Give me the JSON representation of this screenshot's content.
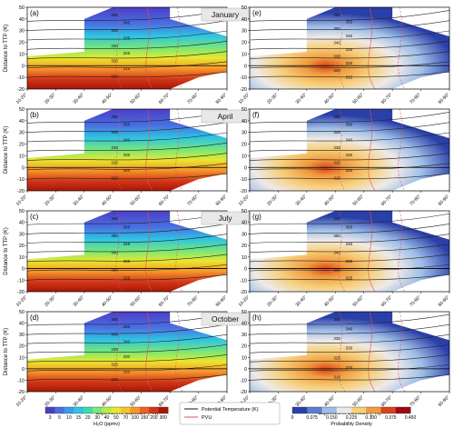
{
  "chart_data": [
    {
      "type": "heatmap",
      "panel_label": "(a)",
      "season": "January",
      "ylabel": "Distance to TTP (K)",
      "ylim": [
        -20,
        50
      ],
      "yticks": [
        -20,
        -10,
        0,
        10,
        20,
        30,
        40,
        50
      ],
      "xticks": [
        "10-20°",
        "20-30°",
        "30-40°",
        "40-50°",
        "50-60°",
        "60-70°",
        "70-80°",
        "80-90°"
      ],
      "contour_labels": [
        "355",
        "345",
        "340",
        "335",
        "330",
        "325",
        "320",
        "315",
        "310"
      ]
    },
    {
      "type": "heatmap",
      "panel_label": "(e)",
      "season": "",
      "ylim": [
        -20,
        50
      ],
      "yticks": [
        -20,
        -10,
        0,
        10,
        20,
        30,
        40,
        50
      ],
      "xticks": [
        "10-20°",
        "20-30°",
        "30-40°",
        "40-50°",
        "50-60°",
        "60-70°",
        "70-80°",
        "80-90°"
      ],
      "contour_labels": [
        "360",
        "355",
        "350",
        "345",
        "340",
        "335",
        "330",
        "325",
        "320",
        "315"
      ]
    },
    {
      "type": "heatmap",
      "panel_label": "(b)",
      "season": "April",
      "ylabel": "Distance to TTP (K)",
      "ylim": [
        -20,
        50
      ],
      "yticks": [
        -20,
        -10,
        0,
        10,
        20,
        30,
        40,
        50
      ],
      "xticks": [
        "10-20°",
        "20-30°",
        "30-40°",
        "40-50°",
        "50-60°",
        "60-70°",
        "70-80°",
        "80-90°"
      ],
      "contour_labels": [
        "355",
        "350",
        "345",
        "340",
        "335",
        "330",
        "325",
        "320",
        "315"
      ]
    },
    {
      "type": "heatmap",
      "panel_label": "(f)",
      "season": "",
      "ylim": [
        -20,
        50
      ],
      "yticks": [
        -20,
        -10,
        0,
        10,
        20,
        30,
        40,
        50
      ],
      "xticks": [
        "10-20°",
        "20-30°",
        "30-40°",
        "40-50°",
        "50-60°",
        "60-70°",
        "70-80°",
        "80-90°"
      ],
      "contour_labels": [
        "355",
        "350",
        "345",
        "340",
        "335",
        "330",
        "325",
        "320",
        "315"
      ]
    },
    {
      "type": "heatmap",
      "panel_label": "(c)",
      "season": "July",
      "ylabel": "Distance to TTP (K)",
      "ylim": [
        -20,
        50
      ],
      "yticks": [
        -20,
        -10,
        0,
        10,
        20,
        30,
        40,
        50
      ],
      "xticks": [
        "10-20°",
        "20-30°",
        "30-40°",
        "40-50°",
        "50-60°",
        "60-70°",
        "70-80°",
        "80-90°"
      ],
      "contour_labels": [
        "360",
        "355",
        "350",
        "345",
        "340",
        "335",
        "330",
        "325"
      ]
    },
    {
      "type": "heatmap",
      "panel_label": "(g)",
      "season": "",
      "ylim": [
        -20,
        50
      ],
      "yticks": [
        -20,
        -10,
        0,
        10,
        20,
        30,
        40,
        50
      ],
      "xticks": [
        "10-20°",
        "20-30°",
        "30-40°",
        "40-50°",
        "50-60°",
        "60-70°",
        "70-80°",
        "80-90°"
      ],
      "contour_labels": [
        "360",
        "355",
        "350",
        "345",
        "340",
        "335",
        "330",
        "325"
      ]
    },
    {
      "type": "heatmap",
      "panel_label": "(d)",
      "season": "October",
      "ylabel": "Distance to TTP (K)",
      "ylim": [
        -20,
        50
      ],
      "yticks": [
        -20,
        -10,
        0,
        10,
        20,
        30,
        40,
        50
      ],
      "xticks": [
        "10-20°",
        "20-30°",
        "30-40°",
        "40-50°",
        "50-60°",
        "60-70°",
        "70-80°",
        "80-90°"
      ],
      "xlabel": "Equivalent Latitude (°N)",
      "contour_labels": [
        "355",
        "350",
        "345",
        "340",
        "335",
        "330",
        "325",
        "320",
        "315"
      ]
    },
    {
      "type": "heatmap",
      "panel_label": "(h)",
      "season": "",
      "ylim": [
        -20,
        50
      ],
      "yticks": [
        -20,
        -10,
        0,
        10,
        20,
        30,
        40,
        50
      ],
      "xticks": [
        "10-20°",
        "20-30°",
        "30-40°",
        "40-50°",
        "50-60°",
        "60-70°",
        "70-80°",
        "80-90°"
      ],
      "xlabel": "Equivalent Latitude (°N)",
      "contour_labels": [
        "345",
        "340",
        "335",
        "330",
        "325",
        "320",
        "315"
      ]
    }
  ],
  "legends": {
    "h2o": {
      "ticks": [
        "3",
        "5",
        "10",
        "15",
        "20",
        "30",
        "40",
        "50",
        "70",
        "100",
        "150",
        "200",
        "300"
      ],
      "label": "H₂O (ppmv)",
      "colors": [
        "#4b3ec4",
        "#4a6fe3",
        "#3d9bf0",
        "#2ec4e3",
        "#3bdcb3",
        "#78e878",
        "#b4ec44",
        "#e8e82e",
        "#f6c42c",
        "#f7962a",
        "#ec6222",
        "#d23618",
        "#a91606"
      ]
    },
    "lines": {
      "items": [
        {
          "label": "Potential Temperature (K)",
          "color": "#111111"
        },
        {
          "label": "PVU",
          "color": "#e05050"
        }
      ]
    },
    "prob": {
      "ticks": [
        "0",
        "0.075",
        "0.150",
        "0.225",
        "0.300",
        "0.375",
        "0.450"
      ],
      "label": "Probability Density",
      "colors": [
        "#2a3fa8",
        "#5a7fd0",
        "#9dbde8",
        "#eeeae8",
        "#f7cf7a",
        "#f19a3d",
        "#d9421c",
        "#9b0a14"
      ]
    }
  }
}
